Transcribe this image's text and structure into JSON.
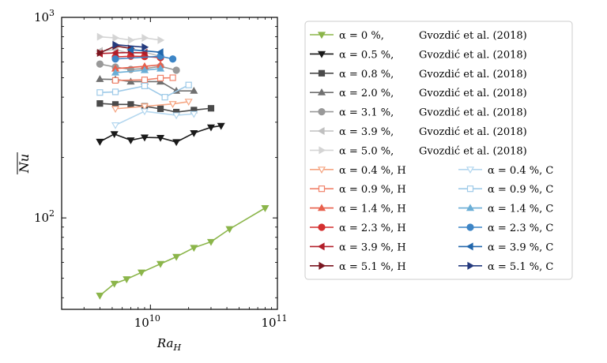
{
  "chart_data": {
    "type": "line",
    "xlabel": "Ra_H",
    "ylabel": "Nu (overline)",
    "xscale": "log",
    "yscale": "log",
    "xlim": [
      2000000000.0,
      100000000000.0
    ],
    "ylim": [
      35,
      1000
    ],
    "x_ticks": [
      {
        "value": 10000000000.0,
        "base": "10",
        "exp": "10"
      },
      {
        "value": 100000000000.0,
        "base": "10",
        "exp": "11"
      }
    ],
    "y_ticks": [
      {
        "value": 100,
        "base": "10",
        "exp": "2"
      },
      {
        "value": 1000,
        "base": "10",
        "exp": "3"
      }
    ],
    "series": [
      {
        "label": "α = 0 %,",
        "ref": "Gvozdić et al. (2018)",
        "color": "#8bb54a",
        "marker": "tri_down",
        "filled": true,
        "x": [
          4000000000.0,
          5200000000.0,
          6500000000.0,
          8500000000.0,
          12000000000.0,
          16000000000.0,
          22000000000.0,
          30000000000.0,
          42000000000.0,
          80000000000.0
        ],
        "y": [
          41,
          47,
          49.5,
          53.5,
          59,
          64,
          71,
          76,
          88,
          112
        ]
      },
      {
        "label": "α = 0.5 %,",
        "ref": "Gvozdić et al. (2018)",
        "color": "#1a1a1a",
        "marker": "tri_down",
        "filled": true,
        "x": [
          4000000000.0,
          5200000000.0,
          7000000000.0,
          9000000000.0,
          12000000000.0,
          16000000000.0,
          22000000000.0,
          30000000000.0,
          36000000000.0
        ],
        "y": [
          240,
          262,
          244,
          252,
          251,
          239,
          265,
          283,
          288
        ]
      },
      {
        "label": "α = 0.8 %,",
        "ref": "Gvozdić et al. (2018)",
        "color": "#4a4a4a",
        "marker": "square",
        "filled": true,
        "x": [
          4000000000.0,
          5300000000.0,
          7000000000.0,
          9000000000.0,
          12000000000.0,
          16000000000.0,
          22000000000.0,
          30000000000.0
        ],
        "y": [
          372,
          368,
          368,
          360,
          350,
          337,
          345,
          352
        ]
      },
      {
        "label": "α = 2.0 %,",
        "ref": "Gvozdić et al. (2018)",
        "color": "#707070",
        "marker": "tri_up",
        "filled": true,
        "x": [
          4000000000.0,
          5300000000.0,
          7000000000.0,
          9000000000.0,
          12000000000.0,
          16000000000.0,
          22000000000.0
        ],
        "y": [
          492,
          490,
          478,
          478,
          478,
          430,
          430
        ]
      },
      {
        "label": "α = 3.1 %,",
        "ref": "Gvozdić et al. (2018)",
        "color": "#999999",
        "marker": "circle",
        "filled": true,
        "x": [
          4000000000.0,
          5300000000.0,
          7000000000.0,
          9000000000.0,
          12000000000.0,
          16000000000.0
        ],
        "y": [
          585,
          565,
          550,
          555,
          570,
          545
        ]
      },
      {
        "label": "α = 3.9 %,",
        "ref": "Gvozdić et al. (2018)",
        "color": "#c0c0c0",
        "marker": "tri_left",
        "filled": true,
        "x": [
          4000000000.0,
          5300000000.0,
          7000000000.0,
          9000000000.0,
          12000000000.0
        ],
        "y": [
          680,
          690,
          660,
          670,
          640
        ]
      },
      {
        "label": "α = 5.0 %,",
        "ref": "Gvozdić et al. (2018)",
        "color": "#d4d4d4",
        "marker": "tri_right",
        "filled": true,
        "x": [
          4000000000.0,
          5300000000.0,
          7000000000.0,
          9000000000.0,
          12000000000.0
        ],
        "y": [
          800,
          790,
          770,
          790,
          770
        ]
      },
      {
        "label": "α = 0.4 %, H",
        "ref": "",
        "color": "#f5a582",
        "marker": "tri_down",
        "filled": false,
        "x": [
          5300000000.0,
          9000000000.0,
          15000000000.0,
          20000000000.0
        ],
        "y": [
          350,
          360,
          370,
          380
        ]
      },
      {
        "label": "α = 0.9 %, H",
        "ref": "",
        "color": "#f0826a",
        "marker": "square",
        "filled": false,
        "x": [
          5300000000.0,
          9000000000.0,
          12000000000.0,
          15000000000.0
        ],
        "y": [
          485,
          488,
          498,
          500
        ]
      },
      {
        "label": "α = 1.4 %, H",
        "ref": "",
        "color": "#e8604c",
        "marker": "tri_up",
        "filled": true,
        "x": [
          5300000000.0,
          9000000000.0,
          12000000000.0
        ],
        "y": [
          555,
          570,
          580
        ]
      },
      {
        "label": "α = 2.3 %, H",
        "ref": "",
        "color": "#d42f2f",
        "marker": "circle",
        "filled": true,
        "x": [
          5300000000.0,
          7000000000.0,
          9000000000.0,
          12000000000.0
        ],
        "y": [
          635,
          640,
          638,
          630
        ]
      },
      {
        "label": "α = 3.9 %, H",
        "ref": "",
        "color": "#b21f2a",
        "marker": "tri_left",
        "filled": true,
        "x": [
          4000000000.0,
          5300000000.0,
          7000000000.0,
          9000000000.0
        ],
        "y": [
          660,
          665,
          668,
          665
        ]
      },
      {
        "label": "α = 5.1 %, H",
        "ref": "",
        "color": "#7a1620",
        "marker": "tri_right",
        "filled": true,
        "x": [
          4000000000.0,
          5300000000.0,
          7000000000.0
        ],
        "y": [
          665,
          720,
          700
        ]
      },
      {
        "label": "α = 0.4 %, C",
        "ref": "",
        "color": "#b4d7ef",
        "marker": "tri_down",
        "filled": false,
        "x": [
          5300000000.0,
          9000000000.0,
          16000000000.0,
          22000000000.0
        ],
        "y": [
          290,
          340,
          325,
          330
        ]
      },
      {
        "label": "α = 0.9 %, C",
        "ref": "",
        "color": "#9ecae8",
        "marker": "square",
        "filled": false,
        "x": [
          4000000000.0,
          5300000000.0,
          9000000000.0,
          13000000000.0,
          20000000000.0
        ],
        "y": [
          422,
          425,
          455,
          400,
          460
        ]
      },
      {
        "label": "α = 1.4 %, C",
        "ref": "",
        "color": "#6aaed6",
        "marker": "tri_up",
        "filled": true,
        "x": [
          5300000000.0,
          9000000000.0,
          12000000000.0
        ],
        "y": [
          530,
          545,
          555
        ]
      },
      {
        "label": "α = 2.3 %, C",
        "ref": "",
        "color": "#3d85c6",
        "marker": "circle",
        "filled": true,
        "x": [
          5300000000.0,
          12000000000.0,
          15000000000.0
        ],
        "y": [
          620,
          640,
          620
        ]
      },
      {
        "label": "α = 3.9 %, C",
        "ref": "",
        "color": "#2166ac",
        "marker": "tri_left",
        "filled": true,
        "x": [
          7000000000.0,
          12000000000.0
        ],
        "y": [
          690,
          670
        ]
      },
      {
        "label": "α = 5.1 %, C",
        "ref": "",
        "color": "#253b7e",
        "marker": "tri_right",
        "filled": true,
        "x": [
          5300000000.0,
          9000000000.0
        ],
        "y": [
          730,
          710
        ]
      }
    ]
  }
}
